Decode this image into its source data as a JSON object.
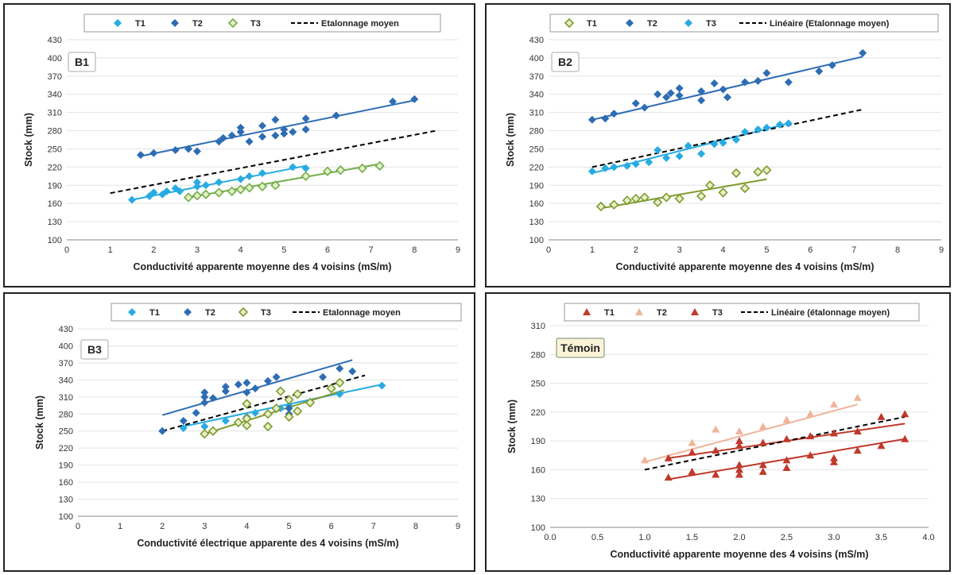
{
  "chart_data": [
    {
      "type": "scatter",
      "tag": "B1",
      "ylabel": "Stock (mm)",
      "xlabel": "Conductivité apparente moyenne des 4 voisins (mS/m)",
      "xlim": [
        0,
        9
      ],
      "ylim": [
        100,
        430
      ],
      "xticks": [
        "0",
        "1",
        "2",
        "3",
        "4",
        "5",
        "6",
        "7",
        "8",
        "9"
      ],
      "yticks": [
        "100",
        "130",
        "160",
        "190",
        "220",
        "250",
        "280",
        "310",
        "340",
        "370",
        "400",
        "430"
      ],
      "legend_position": "top-center",
      "series": [
        {
          "name": "T1",
          "color": "#29abe2",
          "marker": "diamond",
          "x": [
            1.5,
            1.9,
            2.0,
            2.2,
            2.3,
            2.5,
            2.6,
            3.0,
            3.0,
            3.2,
            3.5,
            4.0,
            4.2,
            4.5,
            5.2,
            5.5
          ],
          "y": [
            166,
            172,
            178,
            175,
            180,
            185,
            180,
            188,
            195,
            190,
            195,
            200,
            205,
            210,
            220,
            218
          ],
          "fit": [
            [
              1.5,
              166
            ],
            [
              5.5,
              222
            ]
          ]
        },
        {
          "name": "T2",
          "color": "#2e6db4",
          "marker": "diamond",
          "x": [
            1.7,
            2.0,
            2.5,
            2.8,
            3.0,
            3.5,
            3.6,
            3.8,
            4.0,
            4.0,
            4.2,
            4.5,
            4.5,
            4.8,
            4.8,
            5.0,
            5.0,
            5.2,
            5.5,
            5.5,
            6.2,
            7.5,
            8.0
          ],
          "y": [
            240,
            243,
            248,
            250,
            246,
            262,
            268,
            272,
            278,
            285,
            262,
            288,
            270,
            298,
            272,
            282,
            275,
            278,
            300,
            282,
            305,
            328,
            332
          ],
          "fit": [
            [
              1.7,
              238
            ],
            [
              8.0,
              330
            ]
          ]
        },
        {
          "name": "T3",
          "color": "#70ad47",
          "marker": "diamond-open",
          "x": [
            2.8,
            3.0,
            3.2,
            3.5,
            3.8,
            4.0,
            4.2,
            4.5,
            4.8,
            5.5,
            6.0,
            6.3,
            6.8,
            7.2
          ],
          "y": [
            170,
            173,
            175,
            178,
            180,
            183,
            186,
            188,
            190,
            205,
            213,
            215,
            218,
            222
          ],
          "fit": [
            [
              2.8,
              170
            ],
            [
              7.2,
              225
            ]
          ]
        },
        {
          "name": "Etalonnage moyen",
          "color": "#000000",
          "marker": "dashed-line",
          "fit": [
            [
              1.0,
              177
            ],
            [
              8.5,
              280
            ]
          ]
        }
      ]
    },
    {
      "type": "scatter",
      "tag": "B2",
      "ylabel": "Stock (mm)",
      "xlabel": "Conductivité apparente moyenne des 4 voisins (mS/m)",
      "xlim": [
        0,
        9
      ],
      "ylim": [
        100,
        430
      ],
      "xticks": [
        "0",
        "1",
        "2",
        "3",
        "4",
        "5",
        "6",
        "7",
        "8",
        "9"
      ],
      "yticks": [
        "100",
        "130",
        "160",
        "190",
        "220",
        "250",
        "280",
        "310",
        "340",
        "370",
        "400",
        "430"
      ],
      "legend_position": "top-center",
      "series": [
        {
          "name": "T1",
          "color": "#7f9a2e",
          "marker": "diamond-open",
          "x": [
            1.2,
            1.5,
            1.8,
            2.0,
            2.2,
            2.5,
            2.7,
            3.0,
            3.5,
            3.7,
            4.0,
            4.3,
            4.5,
            4.8,
            5.0
          ],
          "y": [
            155,
            158,
            165,
            168,
            170,
            162,
            170,
            168,
            172,
            190,
            178,
            210,
            185,
            212,
            215
          ],
          "fit": [
            [
              1.2,
              152
            ],
            [
              5.0,
              200
            ]
          ]
        },
        {
          "name": "T2",
          "color": "#2e6db4",
          "marker": "diamond",
          "x": [
            1.0,
            1.3,
            1.5,
            2.0,
            2.2,
            2.5,
            2.7,
            2.8,
            3.0,
            3.0,
            3.5,
            3.5,
            3.8,
            4.0,
            4.1,
            4.5,
            4.8,
            5.0,
            5.5,
            6.2,
            6.5,
            7.2
          ],
          "y": [
            298,
            300,
            308,
            325,
            318,
            340,
            335,
            342,
            338,
            350,
            330,
            345,
            358,
            348,
            335,
            360,
            362,
            375,
            360,
            378,
            388,
            408
          ],
          "fit": [
            [
              1.0,
              298
            ],
            [
              7.2,
              402
            ]
          ]
        },
        {
          "name": "T3",
          "color": "#29abe2",
          "marker": "diamond",
          "x": [
            1.0,
            1.3,
            1.5,
            1.8,
            2.0,
            2.3,
            2.5,
            2.7,
            3.0,
            3.2,
            3.5,
            3.8,
            4.0,
            4.3,
            4.5,
            4.8,
            5.0,
            5.3,
            5.5
          ],
          "y": [
            213,
            218,
            220,
            222,
            225,
            228,
            248,
            235,
            238,
            255,
            242,
            258,
            260,
            265,
            278,
            282,
            285,
            290,
            292
          ],
          "fit": [
            [
              1.0,
              210
            ],
            [
              5.5,
              292
            ]
          ]
        },
        {
          "name": "Linéaire (Etalonnage moyen)",
          "color": "#000000",
          "marker": "dashed-line",
          "fit": [
            [
              1.0,
              220
            ],
            [
              7.2,
              315
            ]
          ]
        }
      ]
    },
    {
      "type": "scatter",
      "tag": "B3",
      "ylabel": "Stock (mm)",
      "xlabel": "Conductivité électrique apparente des 4 voisins (mS/m)",
      "xlim": [
        0,
        9
      ],
      "ylim": [
        100,
        430
      ],
      "xticks": [
        "0",
        "1",
        "2",
        "3",
        "4",
        "5",
        "6",
        "7",
        "8",
        "9"
      ],
      "yticks": [
        "100",
        "130",
        "160",
        "190",
        "220",
        "250",
        "280",
        "310",
        "340",
        "370",
        "400",
        "430"
      ],
      "legend_position": "top-center",
      "series": [
        {
          "name": "T1",
          "color": "#29abe2",
          "marker": "diamond",
          "x": [
            2.5,
            3.0,
            3.5,
            4.0,
            4.2,
            4.5,
            4.8,
            5.0,
            5.5,
            6.2,
            7.2
          ],
          "y": [
            255,
            258,
            268,
            275,
            282,
            280,
            290,
            295,
            300,
            315,
            330
          ],
          "fit": [
            [
              2.5,
              258
            ],
            [
              7.2,
              332
            ]
          ]
        },
        {
          "name": "T2",
          "color": "#2e6db4",
          "marker": "diamond",
          "x": [
            2.0,
            2.5,
            2.8,
            3.0,
            3.0,
            3.0,
            3.2,
            3.5,
            3.5,
            3.8,
            4.0,
            4.0,
            4.2,
            4.5,
            4.7,
            5.0,
            5.0,
            5.8,
            6.2,
            6.5
          ],
          "y": [
            250,
            268,
            282,
            300,
            310,
            318,
            308,
            320,
            328,
            332,
            318,
            335,
            325,
            338,
            345,
            280,
            290,
            345,
            360,
            355
          ],
          "fit": [
            [
              2.0,
              278
            ],
            [
              6.5,
              375
            ]
          ]
        },
        {
          "name": "T3",
          "color": "#7f9a2e",
          "marker": "diamond-open",
          "x": [
            3.0,
            3.2,
            3.8,
            4.0,
            4.0,
            4.0,
            4.5,
            4.5,
            4.7,
            4.8,
            5.0,
            5.0,
            5.2,
            5.2,
            5.5,
            6.0,
            6.2
          ],
          "y": [
            245,
            250,
            265,
            260,
            272,
            298,
            258,
            280,
            290,
            320,
            275,
            305,
            285,
            315,
            300,
            325,
            335
          ],
          "fit": [
            [
              3.0,
              245
            ],
            [
              6.3,
              322
            ]
          ]
        },
        {
          "name": "Etalonnage moyen",
          "color": "#000000",
          "marker": "dashed-line",
          "fit": [
            [
              2.0,
              250
            ],
            [
              6.8,
              348
            ]
          ]
        }
      ]
    },
    {
      "type": "scatter",
      "tag": "Témoin",
      "ylabel": "Stock (mm)",
      "xlabel": "Conductivité apparente moyenne des 4 voisins (mS/m)",
      "xlim": [
        0,
        4
      ],
      "ylim": [
        100,
        310
      ],
      "xticks": [
        "0.0",
        "0.5",
        "1.0",
        "1.5",
        "2.0",
        "2.5",
        "3.0",
        "3.5",
        "4.0"
      ],
      "yticks": [
        "100",
        "130",
        "160",
        "190",
        "220",
        "250",
        "280",
        "310"
      ],
      "legend_position": "top",
      "series": [
        {
          "name": "T1",
          "color": "#c0392b",
          "marker": "triangle",
          "x": [
            1.25,
            1.5,
            1.75,
            2.0,
            2.0,
            2.0,
            2.25,
            2.25,
            2.5,
            2.5,
            2.75,
            3.0,
            3.0,
            3.25,
            3.5,
            3.75
          ],
          "y": [
            152,
            158,
            155,
            155,
            160,
            165,
            158,
            165,
            162,
            170,
            175,
            168,
            172,
            180,
            185,
            192
          ],
          "fit": [
            [
              1.25,
              150
            ],
            [
              3.75,
              192
            ]
          ]
        },
        {
          "name": "T2",
          "color": "#f0b49a",
          "marker": "triangle",
          "x": [
            1.0,
            1.5,
            1.75,
            2.0,
            2.25,
            2.5,
            2.75,
            3.0,
            3.25
          ],
          "y": [
            170,
            188,
            202,
            200,
            205,
            212,
            218,
            228,
            235
          ],
          "fit": [
            [
              1.0,
              168
            ],
            [
              3.25,
              228
            ]
          ]
        },
        {
          "name": "T3",
          "color": "#c0392b",
          "marker": "triangle",
          "x": [
            1.25,
            1.5,
            1.75,
            2.0,
            2.0,
            2.25,
            2.5,
            2.75,
            3.0,
            3.25,
            3.5,
            3.75
          ],
          "y": [
            172,
            178,
            180,
            185,
            190,
            188,
            192,
            195,
            198,
            200,
            215,
            218
          ],
          "fit": [
            [
              1.25,
              172
            ],
            [
              3.75,
              208
            ]
          ]
        },
        {
          "name": "Linéaire (étalonnage moyen)",
          "color": "#000000",
          "marker": "dashed-line",
          "fit": [
            [
              1.0,
              160
            ],
            [
              3.75,
              215
            ]
          ]
        }
      ]
    }
  ]
}
